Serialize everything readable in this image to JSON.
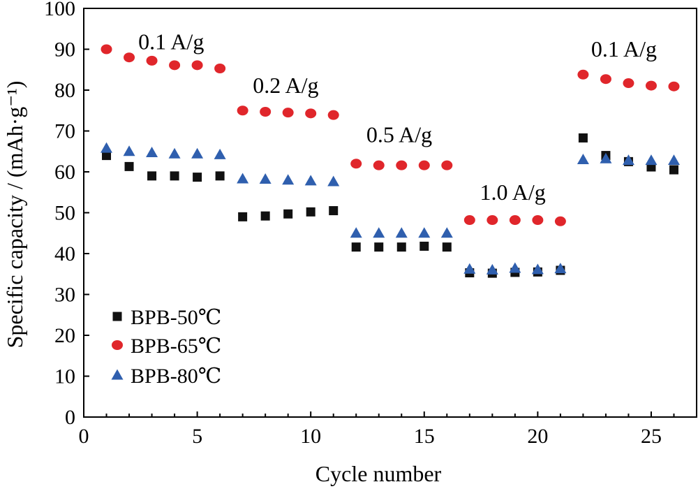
{
  "chart_data": {
    "type": "scatter",
    "xlabel": "Cycle number",
    "ylabel": "Specific capacity / (mAh·g⁻¹)",
    "xlim": [
      0,
      27
    ],
    "ylim": [
      0,
      100
    ],
    "xticks": [
      0,
      5,
      10,
      15,
      20,
      25
    ],
    "yticks": [
      0,
      10,
      20,
      30,
      40,
      50,
      60,
      70,
      80,
      90,
      100
    ],
    "grid": false,
    "legend_position": "bottom-left",
    "series": [
      {
        "name": "BPB-50℃",
        "marker": "square",
        "color": "#111111",
        "x": [
          1,
          2,
          3,
          4,
          5,
          6,
          7,
          8,
          9,
          10,
          11,
          12,
          13,
          14,
          15,
          16,
          17,
          18,
          19,
          20,
          21,
          22,
          23,
          24,
          25,
          26
        ],
        "y": [
          64,
          61.3,
          59,
          59,
          58.7,
          59,
          49,
          49.2,
          49.7,
          50.2,
          50.5,
          41.6,
          41.6,
          41.6,
          41.8,
          41.6,
          35.3,
          35.2,
          35.4,
          35.5,
          35.9,
          68.3,
          64,
          62.5,
          61.2,
          60.5
        ]
      },
      {
        "name": "BPB-65℃",
        "marker": "circle",
        "color": "#e0262b",
        "x": [
          1,
          2,
          3,
          4,
          5,
          6,
          7,
          8,
          9,
          10,
          11,
          12,
          13,
          14,
          15,
          16,
          17,
          18,
          19,
          20,
          21,
          22,
          23,
          24,
          25,
          26
        ],
        "y": [
          90,
          88,
          87.2,
          86.1,
          86.1,
          85.3,
          75,
          74.7,
          74.5,
          74.3,
          73.9,
          62,
          61.6,
          61.6,
          61.6,
          61.6,
          48.2,
          48.2,
          48.2,
          48.2,
          47.9,
          83.8,
          82.7,
          81.7,
          81.1,
          80.9
        ]
      },
      {
        "name": "BPB-80℃",
        "marker": "triangle",
        "color": "#2f5fae",
        "x": [
          1,
          2,
          3,
          4,
          5,
          6,
          7,
          8,
          9,
          10,
          11,
          12,
          13,
          14,
          15,
          16,
          17,
          18,
          19,
          20,
          21,
          22,
          23,
          24,
          25,
          26
        ],
        "y": [
          65.8,
          65,
          64.7,
          64.4,
          64.4,
          64.2,
          58.3,
          58.2,
          58,
          57.8,
          57.6,
          45,
          45,
          45,
          45,
          45,
          36.2,
          36,
          36.4,
          36.1,
          36.3,
          63,
          63.2,
          62.8,
          62.8,
          62.8
        ]
      }
    ],
    "annotations": [
      {
        "text": "0.1 A/g",
        "x": 3.85,
        "y": 90
      },
      {
        "text": "0.2 A/g",
        "x": 8.9,
        "y": 79.3
      },
      {
        "text": "0.5 A/g",
        "x": 13.9,
        "y": 67.3
      },
      {
        "text": "1.0 A/g",
        "x": 18.9,
        "y": 53.2
      },
      {
        "text": "0.1 A/g",
        "x": 23.8,
        "y": 88.2
      }
    ]
  }
}
